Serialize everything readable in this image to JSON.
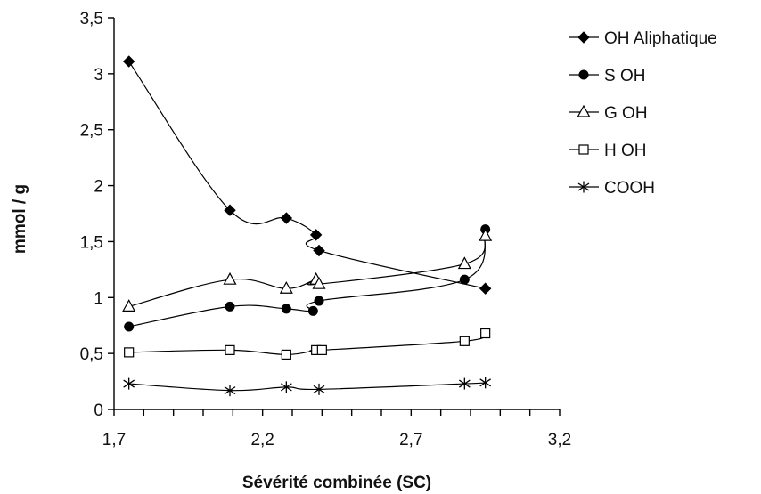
{
  "chart_data": {
    "type": "line",
    "xlabel": "Sévérité combinée (SC)",
    "ylabel": "mmol / g",
    "xlim": [
      1.7,
      3.2
    ],
    "ylim": [
      0,
      3.5
    ],
    "x_ticks": [
      "1,7",
      "2,2",
      "2,7",
      "3,2"
    ],
    "x_tick_values": [
      1.7,
      2.2,
      2.7,
      3.2
    ],
    "y_ticks": [
      "0",
      "0,5",
      "1",
      "1,5",
      "2",
      "2,5",
      "3",
      "3,5"
    ],
    "y_tick_values": [
      0,
      0.5,
      1,
      1.5,
      2,
      2.5,
      3,
      3.5
    ],
    "grid": false,
    "legend_position": "right",
    "series": [
      {
        "name": "OH Aliphatique",
        "marker": "diamond",
        "x": [
          1.75,
          2.09,
          2.28,
          2.38,
          2.39,
          2.95
        ],
        "y": [
          3.11,
          1.78,
          1.71,
          1.56,
          1.42,
          1.08
        ]
      },
      {
        "name": "S OH",
        "marker": "circle",
        "x": [
          1.75,
          2.09,
          2.28,
          2.37,
          2.39,
          2.88,
          2.95
        ],
        "y": [
          0.74,
          0.92,
          0.9,
          0.88,
          0.97,
          1.16,
          1.61
        ]
      },
      {
        "name": "G OH",
        "marker": "triangle",
        "x": [
          1.75,
          2.09,
          2.28,
          2.38,
          2.39,
          2.88,
          2.95
        ],
        "y": [
          0.92,
          1.16,
          1.08,
          1.16,
          1.12,
          1.3,
          1.55
        ]
      },
      {
        "name": "H OH",
        "marker": "square",
        "x": [
          1.75,
          2.09,
          2.28,
          2.38,
          2.4,
          2.88,
          2.95
        ],
        "y": [
          0.51,
          0.53,
          0.49,
          0.53,
          0.53,
          0.61,
          0.68
        ]
      },
      {
        "name": "COOH",
        "marker": "asterisk",
        "x": [
          1.75,
          2.09,
          2.28,
          2.39,
          2.88,
          2.95
        ],
        "y": [
          0.23,
          0.17,
          0.2,
          0.18,
          0.23,
          0.24
        ]
      }
    ]
  }
}
